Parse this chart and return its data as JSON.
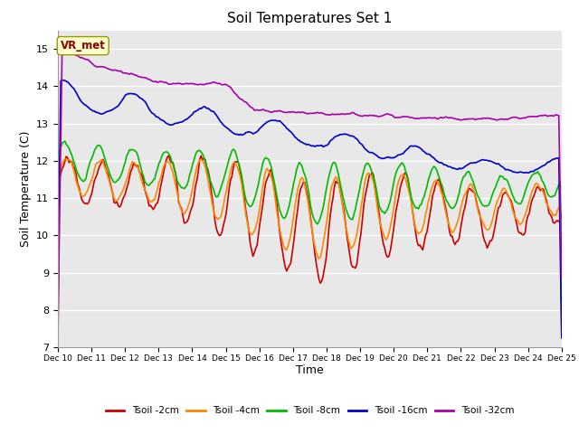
{
  "title": "Soil Temperatures Set 1",
  "xlabel": "Time",
  "ylabel": "Soil Temperature (C)",
  "bg_color": "#e8e8e8",
  "fig_color": "#ffffff",
  "ylim": [
    7.0,
    15.5
  ],
  "yticks": [
    7.0,
    8.0,
    9.0,
    10.0,
    11.0,
    12.0,
    13.0,
    14.0,
    15.0
  ],
  "xtick_labels": [
    "Dec 10",
    "Dec 11",
    "Dec 12",
    "Dec 13",
    "Dec 14",
    "Dec 15",
    "Dec 16",
    "Dec 17",
    "Dec 18",
    "Dec 19",
    "Dec 20",
    "Dec 21",
    "Dec 22",
    "Dec 23",
    "Dec 24",
    "Dec 25"
  ],
  "series_colors": [
    "#cc0000",
    "#ff8800",
    "#00bb00",
    "#0000cc",
    "#aa00aa"
  ],
  "series_labels": [
    "Tsoil -2cm",
    "Tsoil -4cm",
    "Tsoil -8cm",
    "Tsoil -16cm",
    "Tsoil -32cm"
  ],
  "annotation_text": "VR_met",
  "annotation_bg": "#ffffcc",
  "annotation_border": "#999900"
}
